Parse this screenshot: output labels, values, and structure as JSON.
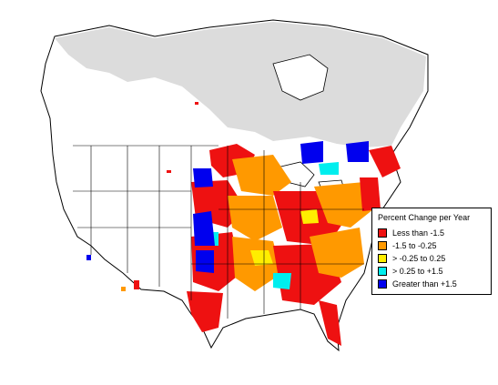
{
  "colors": {
    "background": "#ffffff",
    "canada_boreal": "#dcdcdc",
    "land": "#ffffff",
    "boundary": "#000000"
  },
  "legend": {
    "title": "Percent Change per Year",
    "items": [
      {
        "label": "Less than -1.5",
        "color": "#ee1111"
      },
      {
        "label": "-1.5 to -0.25",
        "color": "#ff9900"
      },
      {
        "label": "> -0.25 to 0.25",
        "color": "#ffee00"
      },
      {
        "label": "> 0.25 to +1.5",
        "color": "#00eeee"
      },
      {
        "label": "Greater than +1.5",
        "color": "#0000ee"
      }
    ]
  }
}
